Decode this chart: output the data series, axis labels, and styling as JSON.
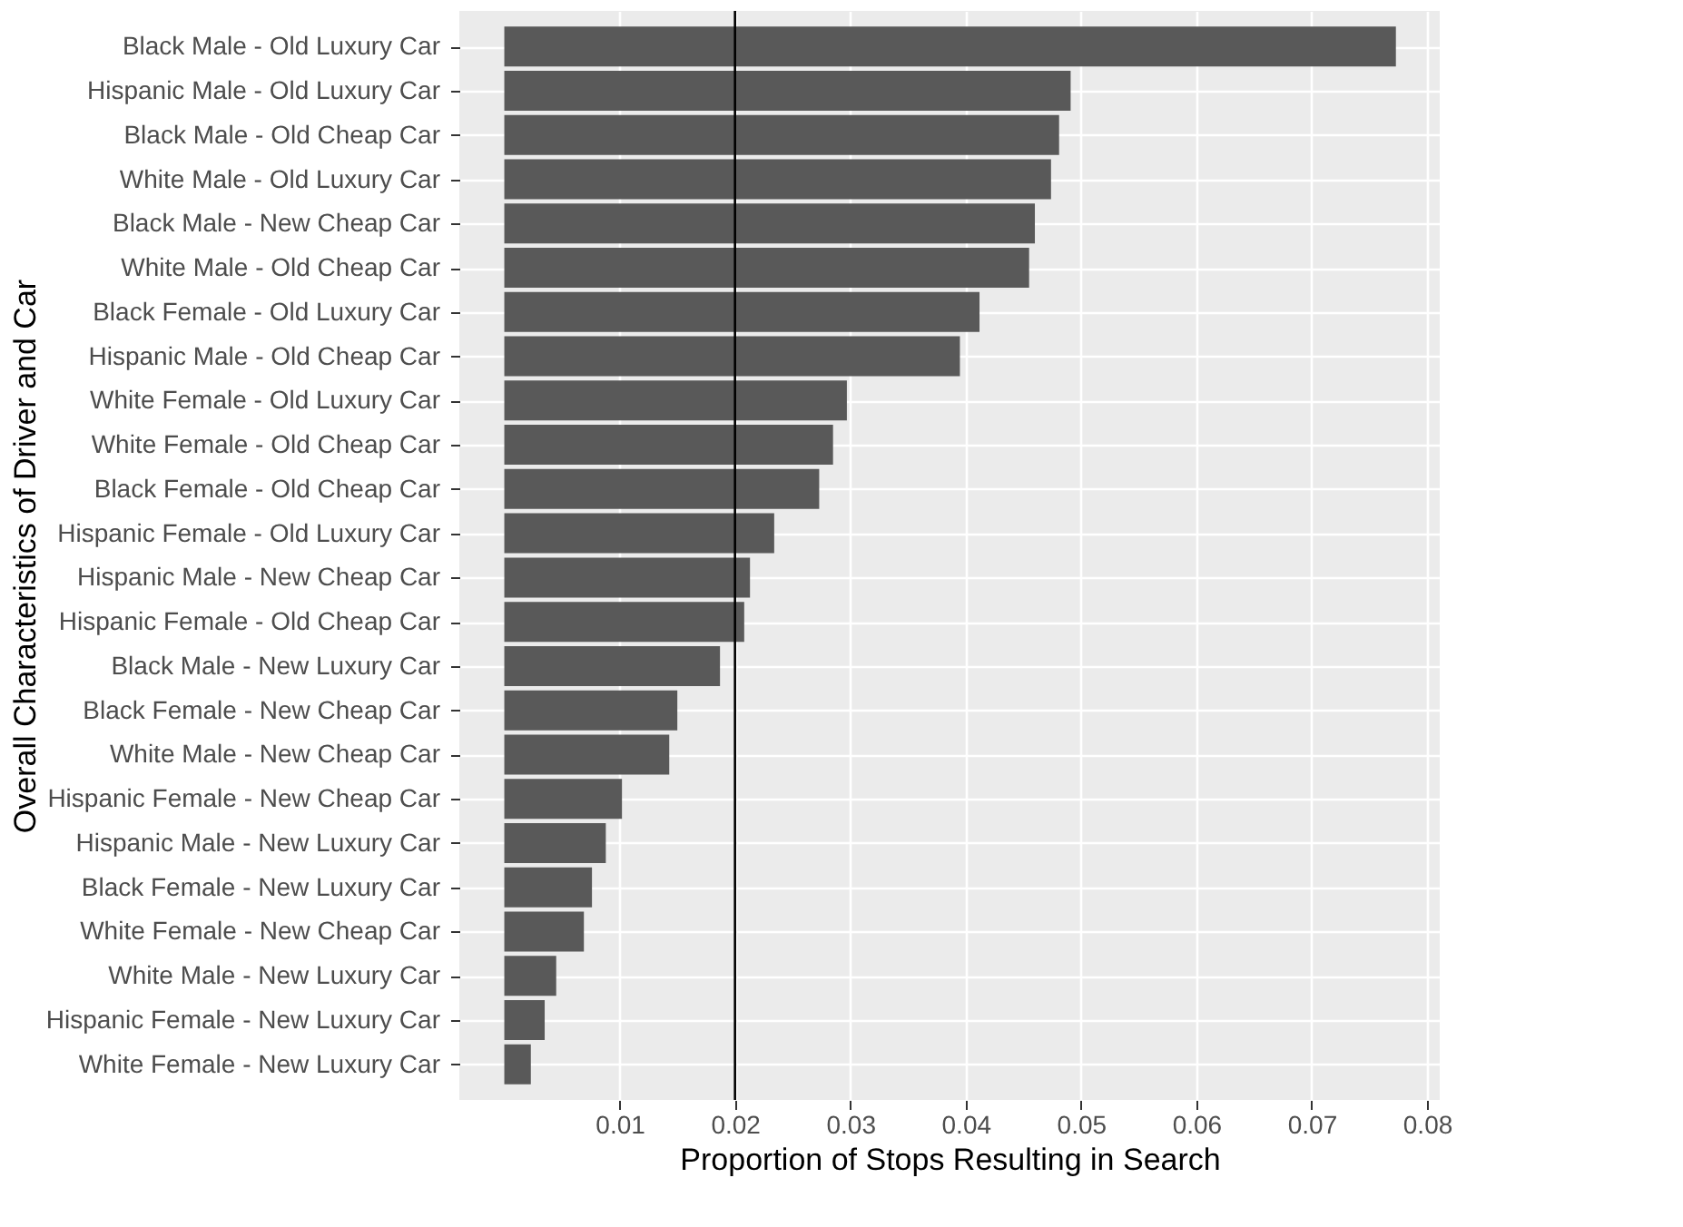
{
  "chart_data": {
    "type": "bar",
    "orientation": "horizontal",
    "xlabel": "Proportion of Stops Resulting in Search",
    "ylabel": "Overall Characteristics of Driver and Car",
    "categories": [
      "Black Male - Old Luxury Car",
      "Hispanic Male - Old Luxury Car",
      "Black Male - Old Cheap Car",
      "White Male - Old Luxury Car",
      "Black Male - New Cheap Car",
      "White Male - Old Cheap Car",
      "Black Female - Old Luxury Car",
      "Hispanic Male - Old Cheap Car",
      "White Female - Old Luxury Car",
      "White Female - Old Cheap Car",
      "Black Female - Old Cheap Car",
      "Hispanic Female - Old Luxury Car",
      "Hispanic Male - New Cheap Car",
      "Hispanic Female - Old Cheap Car",
      "Black Male - New Luxury Car",
      "Black Female - New Cheap Car",
      "White Male - New Cheap Car",
      "Hispanic Female - New Cheap Car",
      "Hispanic Male - New Luxury Car",
      "Black Female - New Luxury Car",
      "White Female - New Cheap Car",
      "White Male - New Luxury Car",
      "Hispanic Female - New Luxury Car",
      "White Female - New Luxury Car"
    ],
    "values": [
      0.0773,
      0.0491,
      0.0481,
      0.0474,
      0.046,
      0.0455,
      0.0412,
      0.0395,
      0.0297,
      0.0285,
      0.0273,
      0.0234,
      0.0213,
      0.0208,
      0.0187,
      0.015,
      0.0143,
      0.0102,
      0.0088,
      0.0076,
      0.0069,
      0.0045,
      0.0035,
      0.0023
    ],
    "color": "#595959",
    "xlim": [
      -0.0039,
      0.0811
    ],
    "xticks": [
      0.01,
      0.02,
      0.03,
      0.04,
      0.05,
      0.06,
      0.07,
      0.08
    ],
    "ref_lines": [
      {
        "axis": "x",
        "value": 0.02,
        "color": "#000000"
      }
    ],
    "grid": true
  }
}
